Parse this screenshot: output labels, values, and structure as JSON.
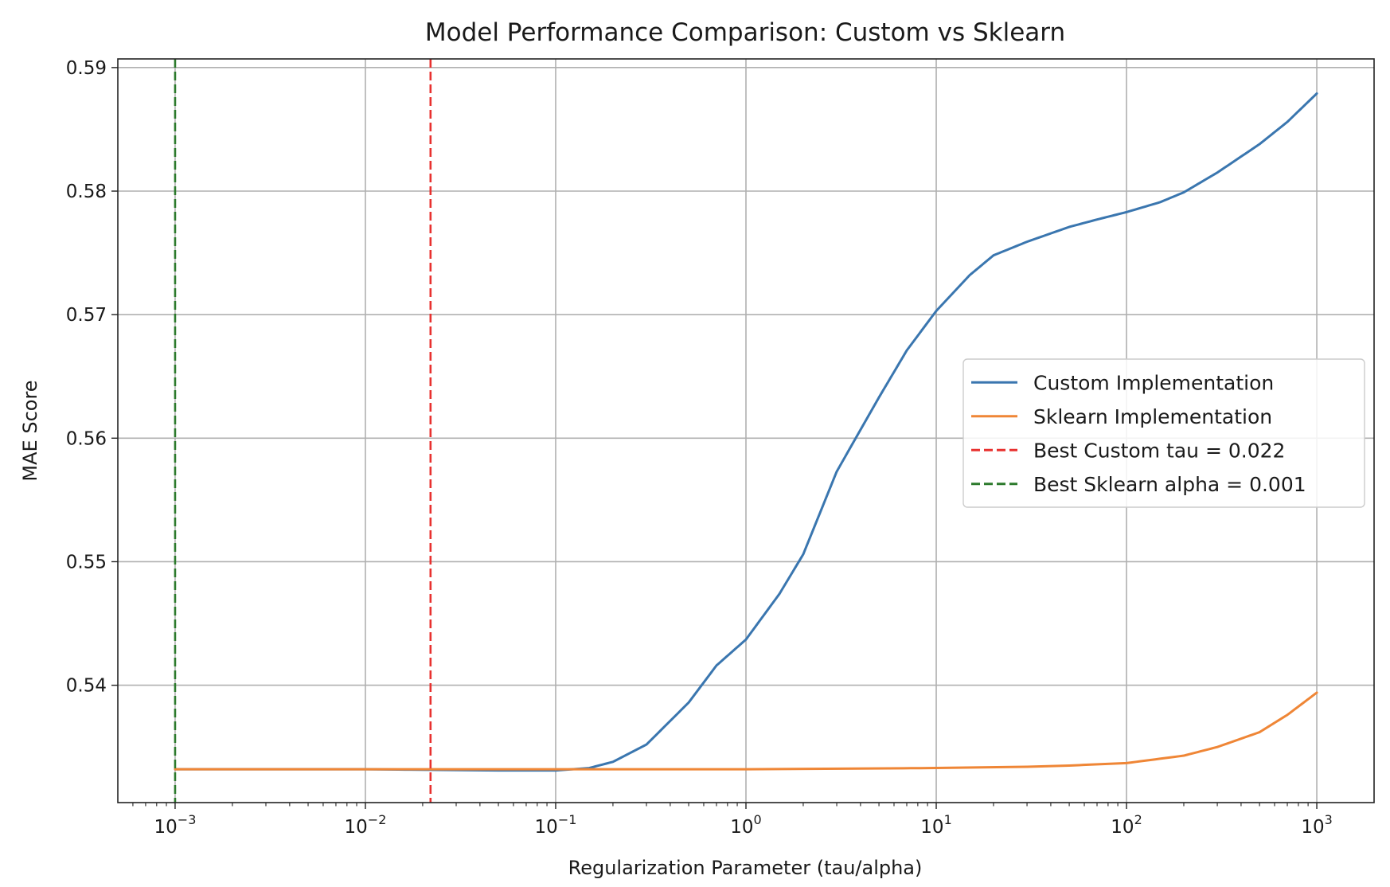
{
  "chart_data": {
    "type": "line",
    "title": "Model Performance Comparison: Custom vs Sklearn",
    "xlabel": "Regularization Parameter (tau/alpha)",
    "ylabel": "MAE Score",
    "xscale": "log",
    "xlim": [
      0.0005,
      2000
    ],
    "ylim": [
      0.5305,
      0.5907
    ],
    "grid": true,
    "legend_position": "center-right",
    "x_ticks": [
      {
        "base": "10",
        "exp": "−3",
        "value": 0.001
      },
      {
        "base": "10",
        "exp": "−2",
        "value": 0.01
      },
      {
        "base": "10",
        "exp": "−1",
        "value": 0.1
      },
      {
        "base": "10",
        "exp": "0",
        "value": 1
      },
      {
        "base": "10",
        "exp": "1",
        "value": 10
      },
      {
        "base": "10",
        "exp": "2",
        "value": 100
      },
      {
        "base": "10",
        "exp": "3",
        "value": 1000
      }
    ],
    "y_ticks": [
      {
        "label": "0.54",
        "value": 0.54
      },
      {
        "label": "0.55",
        "value": 0.55
      },
      {
        "label": "0.56",
        "value": 0.56
      },
      {
        "label": "0.57",
        "value": 0.57
      },
      {
        "label": "0.58",
        "value": 0.58
      },
      {
        "label": "0.59",
        "value": 0.59
      }
    ],
    "series": [
      {
        "name": "Custom Implementation",
        "color": "#3a76af",
        "style": "solid",
        "x": [
          0.001,
          0.01,
          0.05,
          0.1,
          0.15,
          0.2,
          0.3,
          0.5,
          0.7,
          1,
          1.5,
          2,
          3,
          5,
          7,
          10,
          15,
          20,
          30,
          50,
          70,
          100,
          150,
          200,
          300,
          500,
          700,
          1000
        ],
        "y": [
          0.5332,
          0.5332,
          0.5331,
          0.5331,
          0.5333,
          0.5338,
          0.5352,
          0.5386,
          0.5416,
          0.5437,
          0.5474,
          0.5506,
          0.5573,
          0.5633,
          0.5671,
          0.5703,
          0.5732,
          0.5748,
          0.5759,
          0.5771,
          0.5777,
          0.5783,
          0.5791,
          0.5799,
          0.5815,
          0.5838,
          0.5856,
          0.5879
        ]
      },
      {
        "name": "Sklearn Implementation",
        "color": "#ef8636",
        "style": "solid",
        "x": [
          0.001,
          0.01,
          0.1,
          1,
          10,
          30,
          50,
          100,
          200,
          300,
          500,
          700,
          1000
        ],
        "y": [
          0.5332,
          0.5332,
          0.5332,
          0.5332,
          0.5333,
          0.5334,
          0.5335,
          0.5337,
          0.5343,
          0.535,
          0.5362,
          0.5376,
          0.5394
        ]
      }
    ],
    "reference_lines": [
      {
        "name": "Best Custom tau = 0.022",
        "x": 0.022,
        "color": "#e8312f",
        "style": "dashed"
      },
      {
        "name": "Best Sklearn alpha = 0.001",
        "x": 0.001,
        "color": "#2c7a2c",
        "style": "dashed"
      }
    ]
  }
}
